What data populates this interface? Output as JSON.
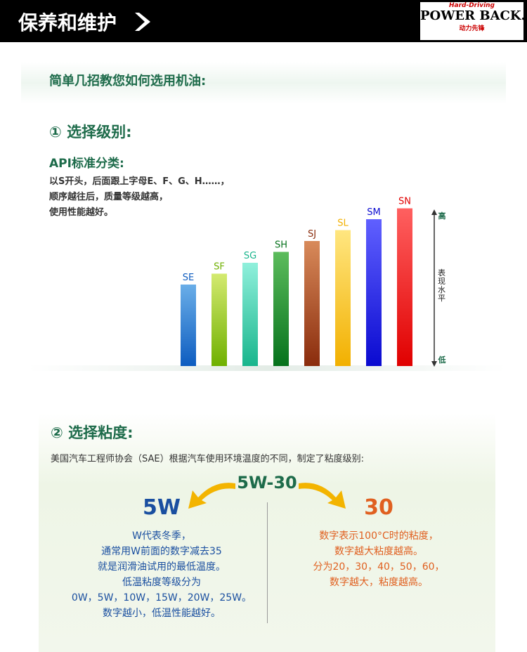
{
  "header": {
    "title": "保养和维护",
    "logo_top": "Hard-Driving",
    "logo_main": "POWER BACK.",
    "logo_sub": "动力先锋"
  },
  "intro": "简单几招教您如何选用机油:",
  "section1": {
    "heading": "① 选择级别:",
    "subheading": "API标准分类:",
    "lines": [
      "以S开头，后面跟上字母E、F、G、H……，",
      "顺序越往后，质量等级越高，",
      "使用性能越好。"
    ],
    "grades": [
      "SE",
      "SF",
      "SG",
      "SH",
      "SJ",
      "SL",
      "SM",
      "SN"
    ],
    "axis": {
      "high": "高",
      "label": "表现水平",
      "low": "低"
    }
  },
  "section2": {
    "heading": "② 选择粘度:",
    "description": "美国汽车工程师协会（SAE）根据汽车使用环境温度的不同，制定了粘度级别:",
    "code": "5W-30",
    "left": {
      "title": "5W",
      "lines": [
        "W代表冬季，",
        "通常用W前面的数字减去35",
        "就是润滑油试用的最低温度。",
        "低温粘度等级分为",
        "0W，5W，10W，15W，20W，25W。",
        "数字越小，低温性能越好。"
      ]
    },
    "right": {
      "title": "30",
      "lines": [
        "数字表示100°C时的粘度，",
        "数字越大粘度越高。",
        "分为20，30，40，50，60，",
        "数字越大，粘度越高。"
      ]
    }
  }
}
